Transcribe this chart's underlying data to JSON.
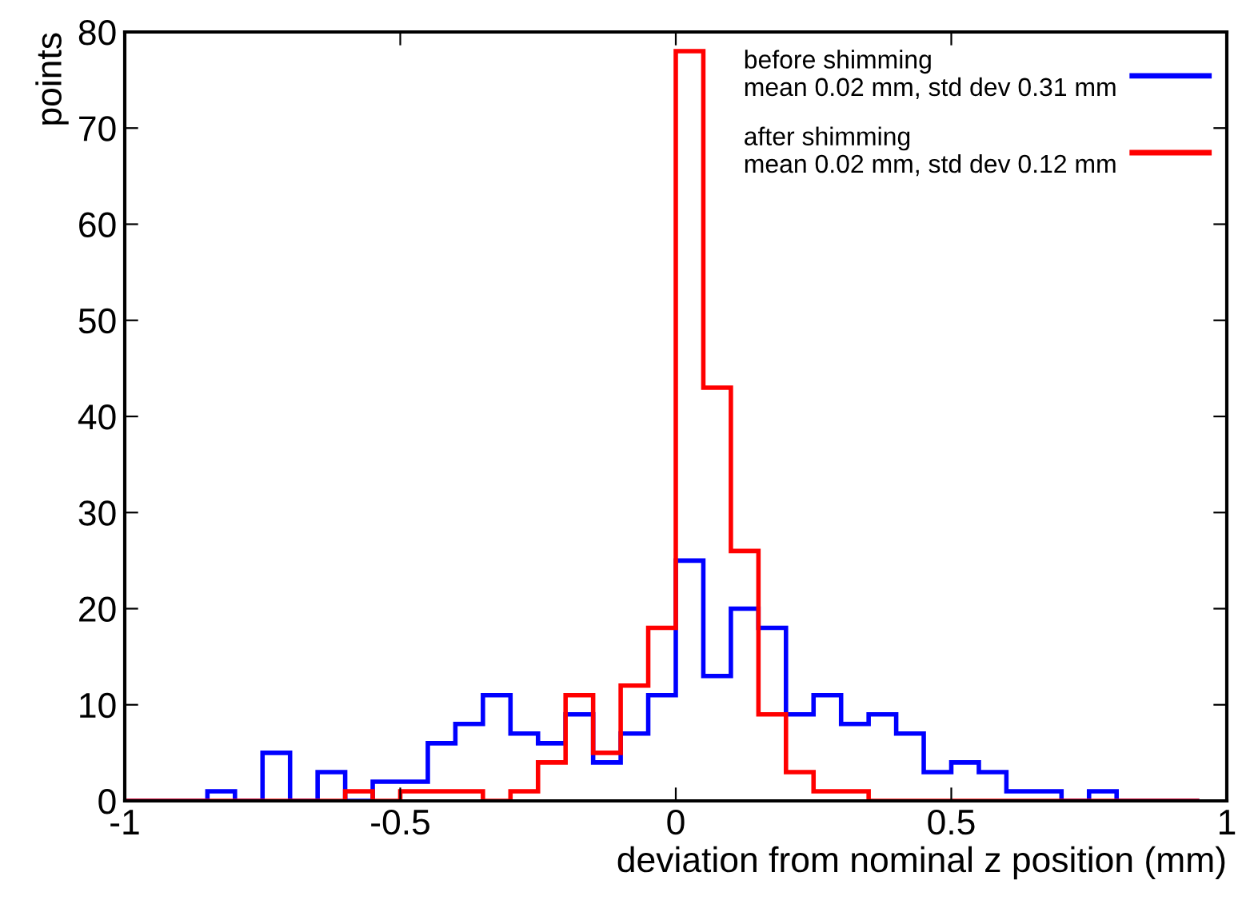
{
  "chart_data": {
    "type": "histogram",
    "xlabel": "deviation from nominal z position (mm)",
    "ylabel": "points",
    "bins": [
      -1.0,
      -0.95,
      -0.9,
      -0.85,
      -0.8,
      -0.75,
      -0.7,
      -0.65,
      -0.6,
      -0.55,
      -0.5,
      -0.45,
      -0.4,
      -0.35,
      -0.3,
      -0.25,
      -0.2,
      -0.15,
      -0.1,
      -0.05,
      0.0,
      0.05,
      0.1,
      0.15,
      0.2,
      0.25,
      0.3,
      0.35,
      0.4,
      0.45,
      0.5,
      0.55,
      0.6,
      0.65,
      0.7,
      0.75,
      0.8,
      0.85,
      0.9,
      0.95
    ],
    "series": [
      {
        "name": "before shimming\nmean 0.02 mm, std dev 0.31 mm",
        "color": "#0000ff",
        "values": [
          0,
          0,
          0,
          1,
          0,
          5,
          0,
          3,
          0,
          2,
          2,
          6,
          8,
          11,
          7,
          6,
          9,
          4,
          7,
          11,
          25,
          13,
          20,
          18,
          9,
          11,
          8,
          9,
          7,
          3,
          4,
          3,
          1,
          1,
          0,
          1,
          0,
          0,
          0
        ]
      },
      {
        "name": "after shimming\nmean 0.02 mm, std dev 0.12 mm",
        "color": "#ff0000",
        "values": [
          0,
          0,
          0,
          0,
          0,
          0,
          0,
          0,
          1,
          0,
          1,
          1,
          1,
          0,
          1,
          4,
          11,
          5,
          12,
          18,
          78,
          43,
          26,
          9,
          3,
          1,
          1,
          0,
          0,
          0,
          0,
          0,
          0,
          0,
          0,
          0,
          0,
          0,
          0
        ]
      }
    ],
    "xlim": [
      -1,
      1
    ],
    "xticks": [
      -1,
      -0.5,
      0,
      0.5,
      1
    ],
    "ylim": [
      0,
      80
    ],
    "yticks": [
      0,
      10,
      20,
      30,
      40,
      50,
      60,
      70,
      80
    ],
    "grid": false,
    "legend": "top right"
  }
}
